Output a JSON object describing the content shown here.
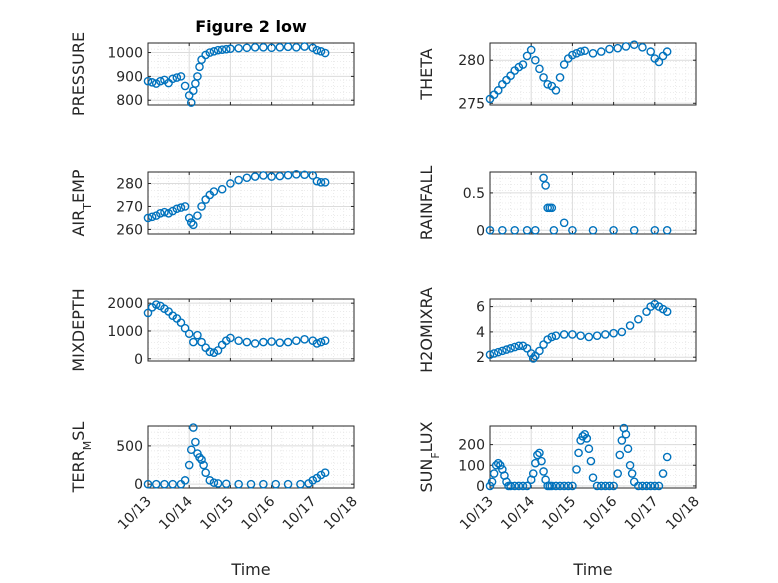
{
  "figure": {
    "title": "Figure 2 low"
  },
  "chart_data": [
    {
      "type": "scatter",
      "ylabel": "PRESSURE",
      "xlabel": "",
      "title": "Figure 2 low",
      "xlim": [
        0,
        5
      ],
      "ylim": [
        780,
        1040
      ],
      "yticks": [
        "800",
        "900",
        "1000"
      ],
      "yticks_v": [
        800,
        900,
        1000
      ],
      "x": [
        0.0,
        0.1,
        0.2,
        0.3,
        0.4,
        0.5,
        0.6,
        0.7,
        0.8,
        0.9,
        1.0,
        1.05,
        1.1,
        1.15,
        1.2,
        1.25,
        1.3,
        1.4,
        1.5,
        1.6,
        1.7,
        1.8,
        1.9,
        2.0,
        2.2,
        2.4,
        2.6,
        2.8,
        3.0,
        3.2,
        3.4,
        3.6,
        3.8,
        4.0,
        4.1,
        4.2,
        4.3
      ],
      "y": [
        880,
        875,
        870,
        880,
        885,
        872,
        890,
        895,
        900,
        860,
        820,
        790,
        840,
        870,
        900,
        940,
        970,
        990,
        1000,
        1005,
        1010,
        1012,
        1014,
        1016,
        1018,
        1020,
        1022,
        1022,
        1020,
        1022,
        1024,
        1022,
        1025,
        1020,
        1010,
        1005,
        998
      ]
    },
    {
      "type": "scatter",
      "ylabel": "THETA",
      "xlabel": "",
      "xlim": [
        0,
        5
      ],
      "ylim": [
        274.8,
        282
      ],
      "yticks": [
        "275",
        "280"
      ],
      "yticks_v": [
        275,
        280
      ],
      "x": [
        0.0,
        0.1,
        0.2,
        0.3,
        0.4,
        0.5,
        0.6,
        0.7,
        0.8,
        0.9,
        1.0,
        1.1,
        1.2,
        1.3,
        1.4,
        1.5,
        1.6,
        1.7,
        1.8,
        1.9,
        2.0,
        2.1,
        2.2,
        2.3,
        2.5,
        2.7,
        2.9,
        3.1,
        3.3,
        3.5,
        3.7,
        3.9,
        4.0,
        4.1,
        4.2,
        4.3
      ],
      "y": [
        275.5,
        276,
        276.5,
        277.2,
        277.7,
        278.2,
        278.8,
        279.2,
        279.5,
        280.5,
        281.2,
        280,
        279,
        278,
        277.2,
        277,
        276.5,
        278,
        279.5,
        280.2,
        280.6,
        280.8,
        281,
        281.1,
        280.8,
        281,
        281.3,
        281.4,
        281.6,
        281.8,
        281.5,
        281,
        280.2,
        279.8,
        280.5,
        281
      ]
    },
    {
      "type": "scatter",
      "ylabel": "AIR_TEMP",
      "xlabel": "",
      "xlim": [
        0,
        5
      ],
      "ylim": [
        258,
        285
      ],
      "yticks": [
        "260",
        "270",
        "280"
      ],
      "yticks_v": [
        260,
        270,
        280
      ],
      "x": [
        0.0,
        0.1,
        0.2,
        0.3,
        0.4,
        0.5,
        0.6,
        0.7,
        0.8,
        0.9,
        1.0,
        1.05,
        1.1,
        1.2,
        1.3,
        1.4,
        1.5,
        1.6,
        1.8,
        2.0,
        2.2,
        2.4,
        2.6,
        2.8,
        3.0,
        3.2,
        3.4,
        3.6,
        3.8,
        4.0,
        4.1,
        4.2,
        4.3
      ],
      "y": [
        265,
        265.5,
        266,
        267,
        267.5,
        267,
        268,
        269,
        269.5,
        270,
        265,
        263,
        262,
        266,
        270,
        273,
        275,
        276.5,
        277.5,
        280,
        281.5,
        282.5,
        283,
        283.5,
        283,
        283.2,
        283.6,
        284,
        283.8,
        283.5,
        281,
        280.5,
        280.5
      ]
    },
    {
      "type": "scatter",
      "ylabel": "RAINFALL",
      "xlabel": "",
      "xlim": [
        0,
        5
      ],
      "ylim": [
        -0.05,
        0.78
      ],
      "yticks": [
        "0",
        "0.5"
      ],
      "yticks_v": [
        0,
        0.5
      ],
      "x": [
        0.0,
        0.3,
        0.6,
        0.9,
        1.1,
        1.3,
        1.35,
        1.4,
        1.45,
        1.5,
        1.55,
        1.8,
        2.0,
        2.5,
        3.0,
        3.5,
        4.0,
        4.3
      ],
      "y": [
        0,
        0,
        0,
        0,
        0,
        0.7,
        0.6,
        0.3,
        0.3,
        0.3,
        0,
        0.1,
        0,
        0,
        0,
        0,
        0,
        0
      ]
    },
    {
      "type": "scatter",
      "ylabel": "MIXDEPTH",
      "xlabel": "",
      "xlim": [
        0,
        5
      ],
      "ylim": [
        -80,
        2150
      ],
      "yticks": [
        "0",
        "1000",
        "2000"
      ],
      "yticks_v": [
        0,
        1000,
        2000
      ],
      "x": [
        0.0,
        0.1,
        0.2,
        0.3,
        0.4,
        0.5,
        0.6,
        0.7,
        0.8,
        0.9,
        1.0,
        1.1,
        1.2,
        1.3,
        1.4,
        1.5,
        1.6,
        1.7,
        1.8,
        1.9,
        2.0,
        2.2,
        2.4,
        2.6,
        2.8,
        3.0,
        3.2,
        3.4,
        3.6,
        3.8,
        4.0,
        4.1,
        4.2,
        4.3
      ],
      "y": [
        1650,
        1850,
        1950,
        1900,
        1800,
        1700,
        1550,
        1450,
        1300,
        1100,
        900,
        600,
        850,
        600,
        400,
        250,
        220,
        300,
        500,
        650,
        750,
        650,
        600,
        550,
        600,
        620,
        580,
        600,
        650,
        700,
        650,
        550,
        600,
        650
      ]
    },
    {
      "type": "scatter",
      "ylabel": "H2OMIXRA",
      "xlabel": "",
      "xlim": [
        0,
        5
      ],
      "ylim": [
        1.7,
        6.6
      ],
      "yticks": [
        "2",
        "4",
        "6"
      ],
      "yticks_v": [
        2,
        4,
        6
      ],
      "x": [
        0.0,
        0.1,
        0.2,
        0.3,
        0.4,
        0.5,
        0.6,
        0.7,
        0.8,
        0.9,
        1.0,
        1.05,
        1.1,
        1.2,
        1.3,
        1.4,
        1.5,
        1.6,
        1.8,
        2.0,
        2.2,
        2.4,
        2.6,
        2.8,
        3.0,
        3.2,
        3.4,
        3.6,
        3.8,
        3.9,
        4.0,
        4.1,
        4.2,
        4.3
      ],
      "y": [
        2.2,
        2.3,
        2.4,
        2.5,
        2.6,
        2.7,
        2.8,
        2.9,
        2.9,
        2.7,
        2.3,
        1.9,
        2.1,
        2.5,
        3.0,
        3.4,
        3.6,
        3.7,
        3.8,
        3.8,
        3.7,
        3.6,
        3.7,
        3.8,
        3.9,
        4.0,
        4.5,
        5.0,
        5.6,
        6.0,
        6.2,
        6.0,
        5.8,
        5.6
      ]
    },
    {
      "type": "scatter",
      "ylabel": "TERR_MSL",
      "xlabel": "Time",
      "xlim": [
        0,
        5
      ],
      "ylim": [
        -50,
        760
      ],
      "yticks": [
        "0",
        "500"
      ],
      "yticks_v": [
        0,
        500
      ],
      "x": [
        0.0,
        0.2,
        0.4,
        0.6,
        0.8,
        0.9,
        1.0,
        1.05,
        1.1,
        1.15,
        1.2,
        1.25,
        1.3,
        1.35,
        1.4,
        1.5,
        1.6,
        1.7,
        1.9,
        2.2,
        2.5,
        2.8,
        3.1,
        3.4,
        3.7,
        3.9,
        4.0,
        4.1,
        4.2,
        4.3
      ],
      "y": [
        0,
        0,
        0,
        0,
        0,
        50,
        250,
        450,
        740,
        550,
        400,
        350,
        320,
        250,
        150,
        50,
        20,
        10,
        5,
        0,
        0,
        0,
        0,
        0,
        0,
        10,
        50,
        80,
        120,
        150
      ],
      "xticks": [
        "10/13",
        "10/14",
        "10/15",
        "10/16",
        "10/17",
        "10/18"
      ],
      "xticks_v": [
        0,
        1,
        2,
        3,
        4,
        5
      ]
    },
    {
      "type": "scatter",
      "ylabel": "SUN_FLUX",
      "xlabel": "Time",
      "xlim": [
        0,
        5
      ],
      "ylim": [
        -10,
        290
      ],
      "yticks": [
        "0",
        "100",
        "200"
      ],
      "yticks_v": [
        0,
        100,
        200
      ],
      "x": [
        0.0,
        0.05,
        0.1,
        0.15,
        0.2,
        0.25,
        0.3,
        0.35,
        0.4,
        0.45,
        0.5,
        0.6,
        0.7,
        0.8,
        0.9,
        1.0,
        1.05,
        1.1,
        1.15,
        1.2,
        1.25,
        1.3,
        1.35,
        1.4,
        1.45,
        1.5,
        1.6,
        1.7,
        1.8,
        1.9,
        2.0,
        2.1,
        2.15,
        2.2,
        2.25,
        2.3,
        2.35,
        2.4,
        2.45,
        2.5,
        2.6,
        2.7,
        2.8,
        2.9,
        3.0,
        3.1,
        3.15,
        3.2,
        3.25,
        3.3,
        3.35,
        3.4,
        3.45,
        3.5,
        3.6,
        3.7,
        3.8,
        3.9,
        4.0,
        4.1,
        4.2,
        4.3
      ],
      "y": [
        0,
        20,
        60,
        100,
        110,
        100,
        80,
        50,
        20,
        0,
        0,
        0,
        0,
        0,
        0,
        30,
        60,
        110,
        150,
        160,
        120,
        70,
        30,
        0,
        0,
        0,
        0,
        0,
        0,
        0,
        0,
        80,
        160,
        220,
        240,
        250,
        230,
        180,
        120,
        40,
        0,
        0,
        0,
        0,
        0,
        60,
        150,
        220,
        280,
        250,
        180,
        100,
        60,
        20,
        0,
        0,
        0,
        0,
        0,
        0,
        60,
        140
      ],
      "xticks": [
        "10/13",
        "10/14",
        "10/15",
        "10/16",
        "10/17",
        "10/18"
      ],
      "xticks_v": [
        0,
        1,
        2,
        3,
        4,
        5
      ]
    }
  ],
  "colors": {
    "marker": "#0072bd",
    "axis": "#262626",
    "grid": "#dcdcdc"
  }
}
